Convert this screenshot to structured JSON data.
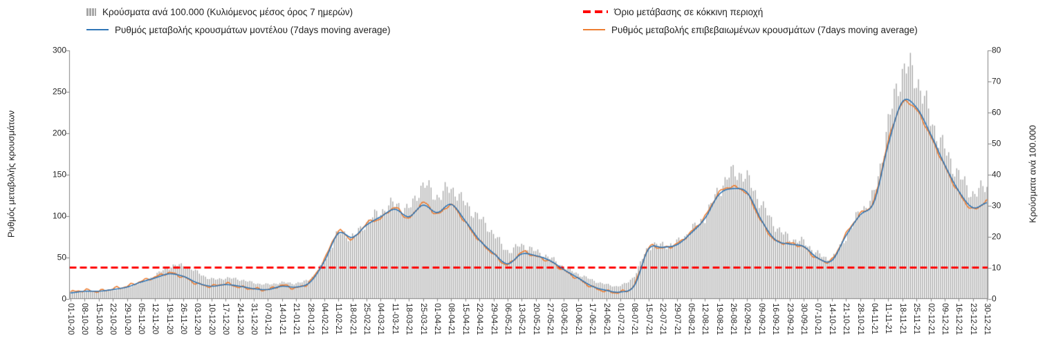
{
  "chart_data": {
    "type": "combo-bar-line",
    "legend": [
      {
        "label": "Κρούσματα ανά 100.000 (Κυλιόμενος μέσος όρος 7 ημερών)",
        "type": "bar",
        "color": "#a6a6a6"
      },
      {
        "label": "Ρυθμός μεταβολής κρουσμάτων μοντέλου (7days moving average)",
        "type": "line",
        "color": "#2e75b6"
      },
      {
        "label": "Όριο μετάβασης σε κόκκινη περιοχή",
        "type": "dashed-line",
        "color": "#ff0000"
      },
      {
        "label": "Ρυθμός μεταβολής επιβεβαιωμένων κρουσμάτων (7days moving average)",
        "type": "line",
        "color": "#ed7d31"
      }
    ],
    "axes": {
      "left": {
        "title": "Ρυθμός μεταβολής κρουσμάτων",
        "min": 0,
        "max": 300,
        "step": 50,
        "ticks": [
          0,
          50,
          100,
          150,
          200,
          250,
          300
        ]
      },
      "right": {
        "title": "Κρούσματα ανά 100.000",
        "min": 0,
        "max": 80,
        "step": 10,
        "ticks": [
          0,
          10,
          20,
          30,
          40,
          50,
          60,
          70,
          80
        ]
      }
    },
    "threshold": {
      "axis": "right",
      "value": 10
    },
    "x_labels": [
      "01-10-20",
      "08-10-20",
      "15-10-20",
      "22-10-20",
      "29-10-20",
      "05-11-20",
      "12-11-20",
      "19-11-20",
      "26-11-20",
      "03-12-20",
      "10-12-20",
      "17-12-20",
      "24-12-20",
      "31-12-20",
      "07-01-21",
      "14-01-21",
      "21-01-21",
      "28-01-21",
      "04-02-21",
      "11-02-21",
      "18-02-21",
      "25-02-21",
      "04-03-21",
      "11-03-21",
      "18-03-21",
      "25-03-21",
      "01-04-21",
      "08-04-21",
      "15-04-21",
      "22-04-21",
      "29-04-21",
      "06-05-21",
      "13-05-21",
      "20-05-21",
      "27-05-21",
      "03-06-21",
      "10-06-21",
      "17-06-21",
      "24-06-21",
      "01-07-21",
      "08-07-21",
      "15-07-21",
      "22-07-21",
      "29-07-21",
      "05-08-21",
      "12-08-21",
      "19-08-21",
      "26-08-21",
      "02-09-21",
      "09-09-21",
      "16-09-21",
      "23-09-21",
      "30-09-21",
      "07-10-21",
      "14-10-21",
      "21-10-21",
      "28-10-21",
      "04-11-21",
      "11-11-21",
      "18-11-21",
      "25-11-21",
      "02-12-21",
      "09-12-21",
      "16-12-21",
      "23-12-21",
      "30-12-21"
    ],
    "series": {
      "cases_per_100k": {
        "axis": "right",
        "weekly_values": [
          2.1,
          2.3,
          2.4,
          2.8,
          3.6,
          5.2,
          7.5,
          10.2,
          10.6,
          8.5,
          6.3,
          6.6,
          6.2,
          5.1,
          4.6,
          5.2,
          5,
          6.5,
          12,
          21,
          20,
          24.5,
          28,
          30.5,
          29,
          36.5,
          33,
          35.5,
          30.5,
          26,
          21,
          15.5,
          17.2,
          15.2,
          13.2,
          10.2,
          8,
          6,
          4.6,
          4.2,
          7.5,
          16.5,
          17.2,
          18,
          22,
          26.5,
          35,
          40.5,
          38.5,
          30.5,
          23.5,
          19.5,
          18.2,
          14.5,
          13.2,
          20,
          28,
          34,
          56,
          73,
          71,
          58,
          48,
          40,
          34,
          36.5
        ]
      },
      "model_rate": {
        "axis": "left",
        "weekly_values": [
          7,
          9,
          9,
          11,
          14,
          20,
          25,
          30,
          27,
          19,
          15,
          17,
          15,
          12,
          11,
          15,
          14,
          20,
          45,
          79,
          74,
          89,
          99,
          108,
          99,
          113,
          104,
          114,
          94,
          71,
          55,
          42,
          54,
          52,
          46,
          35,
          25,
          15,
          10,
          8,
          16,
          60,
          62,
          65,
          79,
          97,
          126,
          133,
          128,
          95,
          71,
          66,
          63,
          49,
          46,
          76,
          101,
          117,
          186,
          238,
          231,
          199,
          162,
          130,
          110,
          116
        ]
      },
      "confirmed_rate": {
        "axis": "left",
        "weekly_values": [
          8,
          10,
          9,
          12,
          15,
          21,
          26,
          31,
          26,
          18,
          15,
          18,
          14,
          12,
          11,
          16,
          13,
          21,
          47,
          81,
          72,
          91,
          97,
          110,
          97,
          116,
          102,
          113,
          92,
          70,
          54,
          41,
          56,
          51,
          45,
          34,
          24,
          14,
          9,
          8,
          17,
          61,
          61,
          66,
          80,
          99,
          128,
          135,
          126,
          93,
          70,
          67,
          62,
          48,
          47,
          78,
          102,
          119,
          190,
          236,
          228,
          196,
          160,
          128,
          108,
          118
        ]
      }
    }
  }
}
